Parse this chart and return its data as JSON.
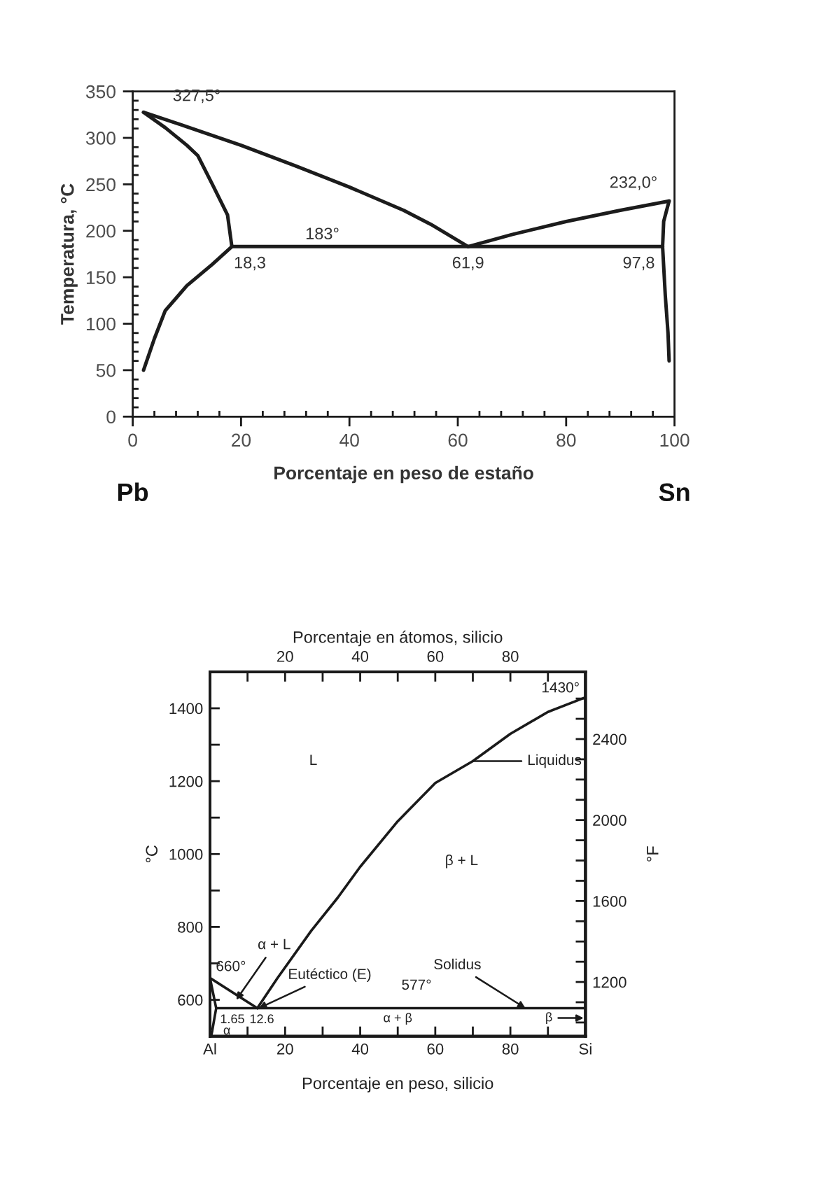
{
  "chart_data": [
    {
      "type": "line",
      "xlabel": "Porcentaje en peso de estaño",
      "ylabel": "Temperatura, °C",
      "xlim": [
        0,
        100
      ],
      "ylim": [
        0,
        350
      ],
      "xticks": [
        0,
        {
          "value": 4,
          "label": null
        },
        {
          "value": 8,
          "label": null
        },
        {
          "value": 12,
          "label": null
        },
        {
          "value": 16,
          "label": null
        },
        20,
        {
          "value": 24,
          "label": null
        },
        {
          "value": 28,
          "label": null
        },
        {
          "value": 32,
          "label": null
        },
        {
          "value": 36,
          "label": null
        },
        40,
        {
          "value": 44,
          "label": null
        },
        {
          "value": 48,
          "label": null
        },
        {
          "value": 52,
          "label": null
        },
        {
          "value": 56,
          "label": null
        },
        60,
        {
          "value": 64,
          "label": null
        },
        {
          "value": 68,
          "label": null
        },
        {
          "value": 72,
          "label": null
        },
        {
          "value": 76,
          "label": null
        },
        80,
        {
          "value": 84,
          "label": null
        },
        {
          "value": 88,
          "label": null
        },
        {
          "value": 92,
          "label": null
        },
        {
          "value": 96,
          "label": null
        },
        100
      ],
      "yticks": [
        0,
        {
          "value": 10,
          "label": null
        },
        {
          "value": 20,
          "label": null
        },
        {
          "value": 30,
          "label": null
        },
        {
          "value": 40,
          "label": null
        },
        50,
        {
          "value": 60,
          "label": null
        },
        {
          "value": 70,
          "label": null
        },
        {
          "value": 80,
          "label": null
        },
        {
          "value": 90,
          "label": null
        },
        100,
        {
          "value": 110,
          "label": null
        },
        {
          "value": 120,
          "label": null
        },
        {
          "value": 130,
          "label": null
        },
        {
          "value": 140,
          "label": null
        },
        150,
        {
          "value": 160,
          "label": null
        },
        {
          "value": 170,
          "label": null
        },
        {
          "value": 180,
          "label": null
        },
        {
          "value": 190,
          "label": null
        },
        200,
        {
          "value": 210,
          "label": null
        },
        {
          "value": 220,
          "label": null
        },
        {
          "value": 230,
          "label": null
        },
        {
          "value": 240,
          "label": null
        },
        250,
        {
          "value": 260,
          "label": null
        },
        {
          "value": 270,
          "label": null
        },
        {
          "value": 280,
          "label": null
        },
        {
          "value": 290,
          "label": null
        },
        300,
        {
          "value": 310,
          "label": null
        },
        {
          "value": 320,
          "label": null
        },
        {
          "value": 330,
          "label": null
        },
        {
          "value": 340,
          "label": null
        },
        350
      ],
      "series": [
        {
          "color": "#1c1c1c",
          "x": [
            2,
            10,
            20,
            30,
            40,
            50,
            55,
            61.9
          ],
          "values": [
            327.5,
            312,
            292,
            270,
            247,
            222,
            207,
            183
          ]
        },
        {
          "color": "#1c1c1c",
          "x": [
            61.9,
            70,
            80,
            90,
            99
          ],
          "values": [
            183,
            196,
            210,
            222,
            232
          ]
        },
        {
          "color": "#1c1c1c",
          "x": [
            2,
            6,
            10,
            12,
            14.7,
            17.5,
            18.3
          ],
          "values": [
            327.5,
            311,
            292,
            281,
            250,
            217,
            183
          ]
        },
        {
          "color": "#1c1c1c",
          "x": [
            2,
            4,
            6,
            10,
            14.7,
            18.3
          ],
          "values": [
            50,
            84,
            114,
            141,
            164,
            183
          ]
        },
        {
          "color": "#1c1c1c",
          "x": [
            18.3,
            97.8
          ],
          "values": [
            183,
            183
          ]
        },
        {
          "color": "#1c1c1c",
          "x": [
            97.8,
            98,
            99
          ],
          "values": [
            183,
            210,
            232
          ]
        },
        {
          "color": "#1c1c1c",
          "x": [
            97.8,
            98.3,
            98.8,
            99
          ],
          "values": [
            183,
            130,
            90,
            60
          ]
        }
      ],
      "annotations": [
        {
          "text": "327,5°",
          "x": 2,
          "y": 327.5
        },
        {
          "text": "232,0°",
          "x": 99,
          "y": 232
        },
        {
          "text": "183°",
          "x": 35,
          "y": 183
        },
        {
          "text": "18,3",
          "x": 18.3,
          "y": 183
        },
        {
          "text": "61,9",
          "x": 61.9,
          "y": 183
        },
        {
          "text": "97,8",
          "x": 97.8,
          "y": 183
        },
        "Pb",
        "Sn"
      ]
    },
    {
      "type": "line",
      "xlabel": "Porcentaje en peso, silicio",
      "ylabel": "°C",
      "x2label": "Porcentaje en átomos, silicio",
      "y2label": "°F",
      "xlim": [
        0,
        100
      ],
      "ylim": [
        500,
        1500
      ],
      "x2lim": [
        0,
        100
      ],
      "y2lim": [
        932,
        2732
      ],
      "xticks": [
        {
          "value": 0,
          "label": "Al"
        },
        {
          "value": 10,
          "label": null
        },
        20,
        {
          "value": 30,
          "label": null
        },
        40,
        {
          "value": 50,
          "label": null
        },
        60,
        {
          "value": 70,
          "label": null
        },
        80,
        {
          "value": 90,
          "label": null
        },
        {
          "value": 100,
          "label": "Si"
        }
      ],
      "yticks": [
        600,
        {
          "value": 700,
          "label": null
        },
        800,
        {
          "value": 900,
          "label": null
        },
        1000,
        {
          "value": 1100,
          "label": null
        },
        1200,
        {
          "value": 1300,
          "label": null
        },
        1400
      ],
      "x2ticks": [
        {
          "value": 10,
          "label": null
        },
        20,
        {
          "value": 30,
          "label": null
        },
        40,
        {
          "value": 50,
          "label": null
        },
        60,
        {
          "value": 70,
          "label": null
        },
        80,
        {
          "value": 90,
          "label": null
        }
      ],
      "y2ticks": [
        {
          "value": 1000,
          "label": null
        },
        {
          "value": 1100,
          "label": null
        },
        1200,
        {
          "value": 1300,
          "label": null
        },
        {
          "value": 1400,
          "label": null
        },
        {
          "value": 1500,
          "label": null
        },
        1600,
        {
          "value": 1700,
          "label": null
        },
        {
          "value": 1800,
          "label": null
        },
        {
          "value": 1900,
          "label": null
        },
        2000,
        {
          "value": 2100,
          "label": null
        },
        {
          "value": 2200,
          "label": null
        },
        {
          "value": 2300,
          "label": null
        },
        2400,
        {
          "value": 2500,
          "label": null
        },
        {
          "value": 2600,
          "label": null
        }
      ],
      "series": [
        {
          "color": "#1a1a1a",
          "x": [
            12.6,
            18,
            27,
            34,
            40,
            50,
            60,
            70,
            80,
            90,
            100
          ],
          "values": [
            577,
            660,
            790,
            880,
            965,
            1090,
            1195,
            1255,
            1330,
            1390,
            1430
          ]
        },
        {
          "color": "#1a1a1a",
          "x": [
            0,
            12.6
          ],
          "values": [
            660,
            577
          ]
        },
        {
          "color": "#1a1a1a",
          "x": [
            1.65,
            100
          ],
          "values": [
            577,
            577
          ]
        },
        {
          "color": "#1a1a1a",
          "x": [
            0,
            1.65
          ],
          "values": [
            660,
            577
          ]
        },
        {
          "color": "#1a1a1a",
          "x": [
            1.65,
            1.1,
            0.6,
            0.3
          ],
          "values": [
            577,
            545,
            515,
            500
          ]
        }
      ],
      "annotations": [
        {
          "text": "1430°",
          "x": 100,
          "y": 1430
        },
        "Liquidus",
        "L",
        "β + L",
        {
          "text": "660°",
          "x": 0,
          "y": 660
        },
        {
          "text": "α + L",
          "x": 7,
          "y": 600
        },
        {
          "text": "Eutéctico (E)",
          "x": 13,
          "y": 577
        },
        {
          "text": "577°",
          "x": 55,
          "y": 577
        },
        {
          "text": "Solidus",
          "x": 84,
          "y": 577
        },
        "α + β",
        {
          "text": "1.65",
          "x": 1.65,
          "y": 577
        },
        {
          "text": "12.6",
          "x": 12.6,
          "y": 577
        },
        "α",
        "β"
      ]
    }
  ]
}
